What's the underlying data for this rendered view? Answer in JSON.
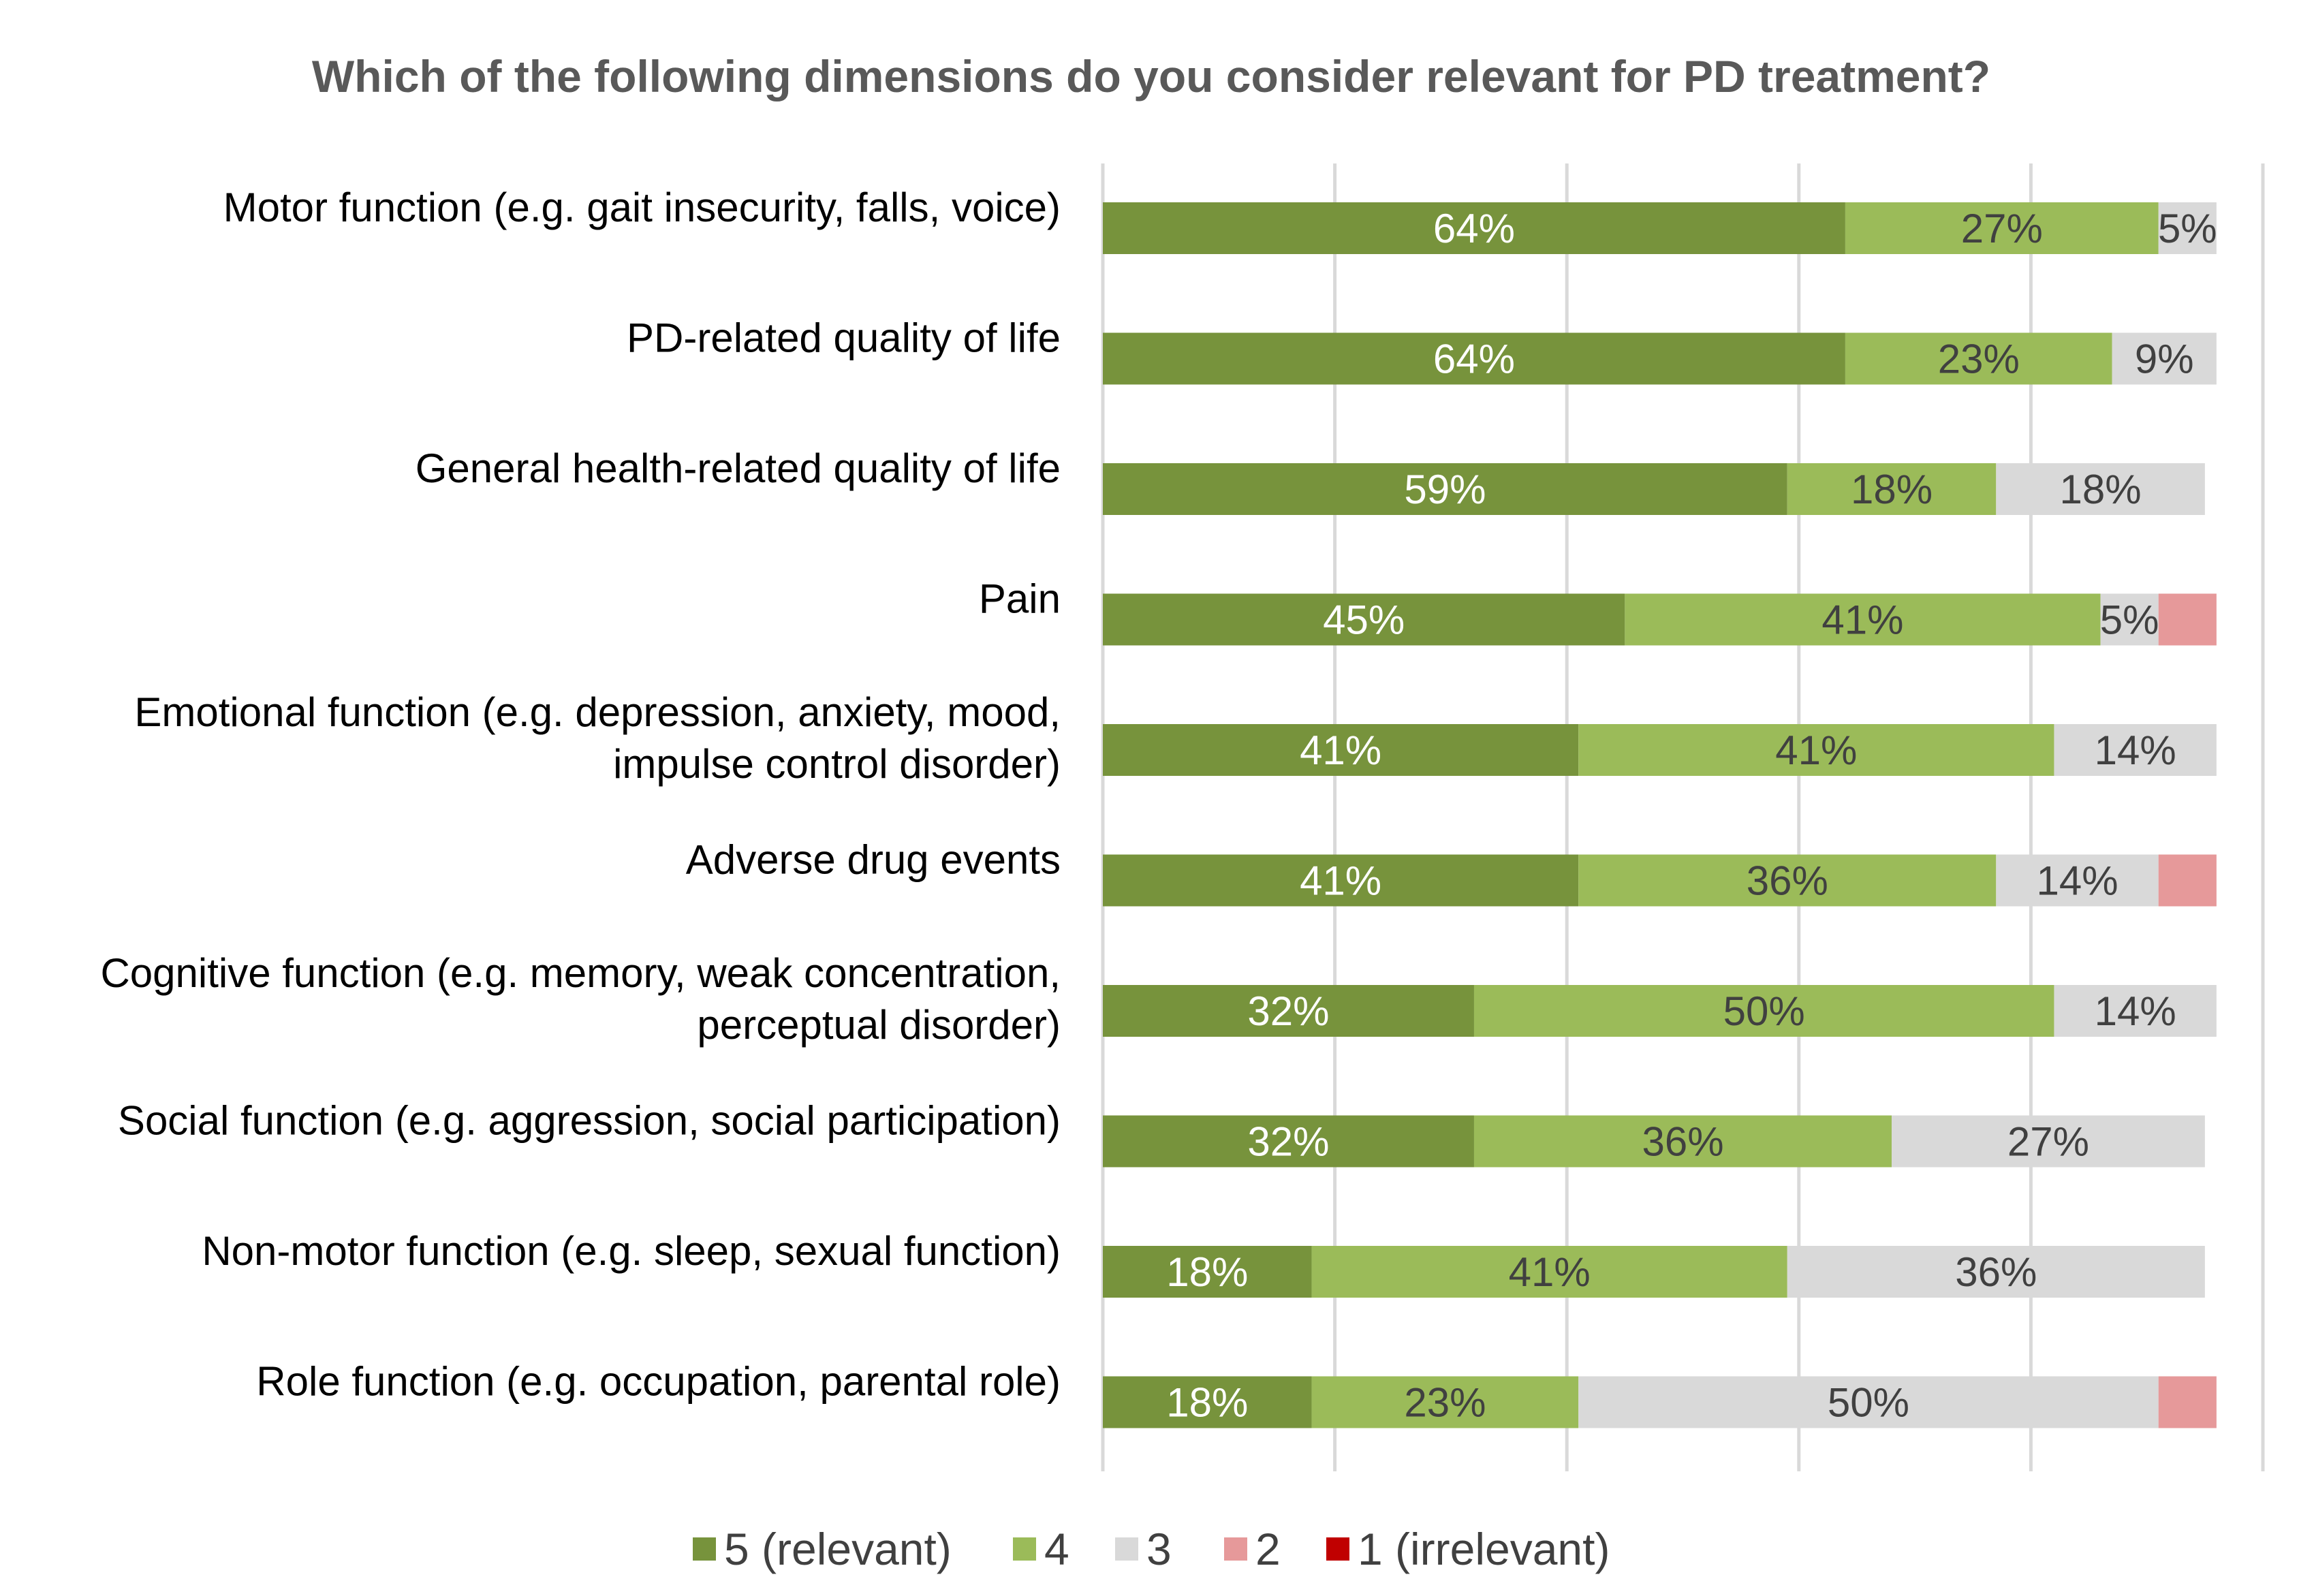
{
  "chart_data": {
    "type": "bar",
    "orientation": "horizontal",
    "stacked": true,
    "title": "Which of the following dimensions do you consider relevant for PD treatment?",
    "xlabel": "",
    "ylabel": "",
    "xlim": [
      0,
      100
    ],
    "grid": true,
    "legend_position": "bottom",
    "categories": [
      [
        "Motor function (e.g. gait insecurity, falls, voice)"
      ],
      [
        "PD-related quality of life"
      ],
      [
        "General health-related quality of life"
      ],
      [
        "Pain"
      ],
      [
        "Emotional function (e.g. depression, anxiety, mood,",
        "impulse control disorder)"
      ],
      [
        "Adverse drug events"
      ],
      [
        "Cognitive function (e.g. memory, weak concentration,",
        "perceptual disorder)"
      ],
      [
        "Social function (e.g. aggression, social participation)"
      ],
      [
        "Non-motor function (e.g. sleep, sexual function)"
      ],
      [
        "Role function (e.g. occupation, parental role)"
      ]
    ],
    "series": [
      {
        "name": "5 (relevant)",
        "color": "#77933C",
        "label_color": "#ffffff",
        "values": [
          64,
          64,
          59,
          45,
          41,
          41,
          32,
          32,
          18,
          18
        ],
        "labels": [
          "64%",
          "64%",
          "59%",
          "45%",
          "41%",
          "41%",
          "32%",
          "32%",
          "18%",
          "18%"
        ]
      },
      {
        "name": "4",
        "color": "#9BBB59",
        "label_color": "#404040",
        "values": [
          27,
          23,
          18,
          41,
          41,
          36,
          50,
          36,
          41,
          23
        ],
        "labels": [
          "27%",
          "23%",
          "18%",
          "41%",
          "41%",
          "36%",
          "50%",
          "36%",
          "41%",
          "23%"
        ]
      },
      {
        "name": "3",
        "color": "#D9D9D9",
        "label_color": "#404040",
        "values": [
          5,
          9,
          18,
          5,
          14,
          14,
          14,
          27,
          36,
          50
        ],
        "labels": [
          "5%",
          "9%",
          "18%",
          "5%",
          "14%",
          "14%",
          "14%",
          "27%",
          "36%",
          "50%"
        ]
      },
      {
        "name": "2",
        "color": "#E6999A",
        "label_color": "#404040",
        "values": [
          0,
          0,
          0,
          5,
          0,
          5,
          0,
          0,
          0,
          5
        ],
        "labels": [
          "",
          "",
          "",
          "",
          "",
          "",
          "",
          "",
          "",
          ""
        ]
      },
      {
        "name": "1 (irrelevant)",
        "color": "#C00000",
        "label_color": "#404040",
        "values": [
          0,
          0,
          0,
          0,
          0,
          0,
          0,
          0,
          0,
          0
        ],
        "labels": [
          "",
          "",
          "",
          "",
          "",
          "",
          "",
          "",
          "",
          ""
        ]
      }
    ]
  }
}
